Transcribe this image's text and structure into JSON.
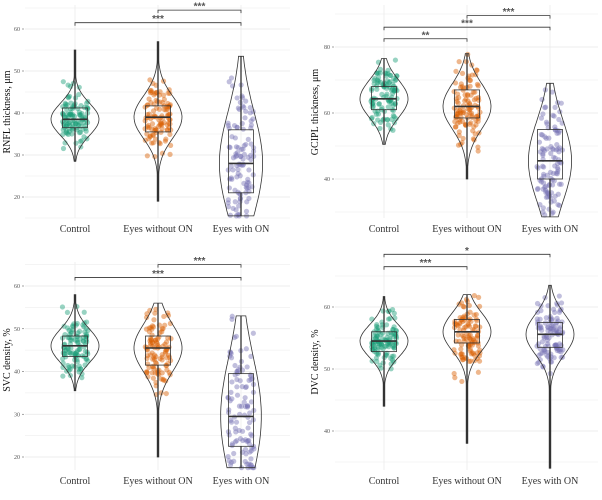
{
  "chart_data": [
    {
      "type": "violin",
      "ylabel": "RNFL thickness, μm",
      "categories": [
        "Control",
        "Eyes without ON",
        "Eyes with ON"
      ],
      "yticks": [
        20,
        30,
        40,
        50,
        60
      ],
      "ylim": [
        15,
        66
      ],
      "grid": true,
      "groups": [
        {
          "median": 38.5,
          "q1": 36.5,
          "q3": 41.2,
          "min": 28.5,
          "max": 55
        },
        {
          "median": 39,
          "q1": 35.5,
          "q3": 41.7,
          "min": 19,
          "max": 57
        },
        {
          "median": 28,
          "q1": 21,
          "q3": 36,
          "min": 15.5,
          "max": 53.5
        }
      ],
      "significance": [
        {
          "from": "Control",
          "to": "Eyes with ON",
          "label": "***",
          "y": 61.5
        },
        {
          "from": "Eyes without ON",
          "to": "Eyes with ON",
          "label": "***",
          "y": 64.5
        }
      ]
    },
    {
      "type": "violin",
      "ylabel": "GCIPL thickness, μm",
      "categories": [
        "Control",
        "Eyes without ON",
        "Eyes with ON"
      ],
      "yticks": [
        40,
        60,
        80
      ],
      "ylim": [
        27,
        92
      ],
      "grid": true,
      "groups": [
        {
          "median": 64.3,
          "q1": 61,
          "q3": 68,
          "min": 50.5,
          "max": 76.5
        },
        {
          "median": 62,
          "q1": 58.5,
          "q3": 67,
          "min": 40,
          "max": 78
        },
        {
          "median": 45.5,
          "q1": 40,
          "q3": 55,
          "min": 28.5,
          "max": 69
        }
      ],
      "significance": [
        {
          "from": "Control",
          "to": "Eyes without ON",
          "label": "**",
          "y": 82.5
        },
        {
          "from": "Control",
          "to": "Eyes with ON",
          "label": "***",
          "y": 86
        },
        {
          "from": "Eyes without ON",
          "to": "Eyes with ON",
          "label": "***",
          "y": 89.5
        }
      ]
    },
    {
      "type": "violin",
      "ylabel": "SVC density, %",
      "categories": [
        "Control",
        "Eyes without ON",
        "Eyes with ON"
      ],
      "yticks": [
        20,
        30,
        40,
        50,
        60
      ],
      "ylim": [
        16,
        66
      ],
      "grid": true,
      "groups": [
        {
          "median": 46,
          "q1": 43.5,
          "q3": 48.3,
          "min": 35.5,
          "max": 58
        },
        {
          "median": 45.5,
          "q1": 41.5,
          "q3": 48.3,
          "min": 20,
          "max": 56
        },
        {
          "median": 29.5,
          "q1": 22.5,
          "q3": 39.5,
          "min": 17.5,
          "max": 53
        }
      ],
      "significance": [
        {
          "from": "Control",
          "to": "Eyes with ON",
          "label": "***",
          "y": 62
        },
        {
          "from": "Eyes without ON",
          "to": "Eyes with ON",
          "label": "***",
          "y": 65
        }
      ]
    },
    {
      "type": "violin",
      "ylabel": "DVC density, %",
      "categories": [
        "Control",
        "Eyes without ON",
        "Eyes with ON"
      ],
      "yticks": [
        40,
        50,
        60
      ],
      "ylim": [
        33,
        69
      ],
      "grid": true,
      "groups": [
        {
          "median": 54.5,
          "q1": 52.8,
          "q3": 56,
          "min": 44,
          "max": 61.7
        },
        {
          "median": 56,
          "q1": 54.2,
          "q3": 58,
          "min": 38,
          "max": 62
        },
        {
          "median": 55.6,
          "q1": 53.5,
          "q3": 57.5,
          "min": 34,
          "max": 63.5
        }
      ],
      "significance": [
        {
          "from": "Control",
          "to": "Eyes without ON",
          "label": "***",
          "y": 66.5
        },
        {
          "from": "Control",
          "to": "Eyes with ON",
          "label": "*",
          "y": 68.5
        }
      ]
    }
  ],
  "colors": {
    "Control": "#1b9e77",
    "Eyes without ON": "#d95f02",
    "Eyes with ON": "#7570b3"
  }
}
